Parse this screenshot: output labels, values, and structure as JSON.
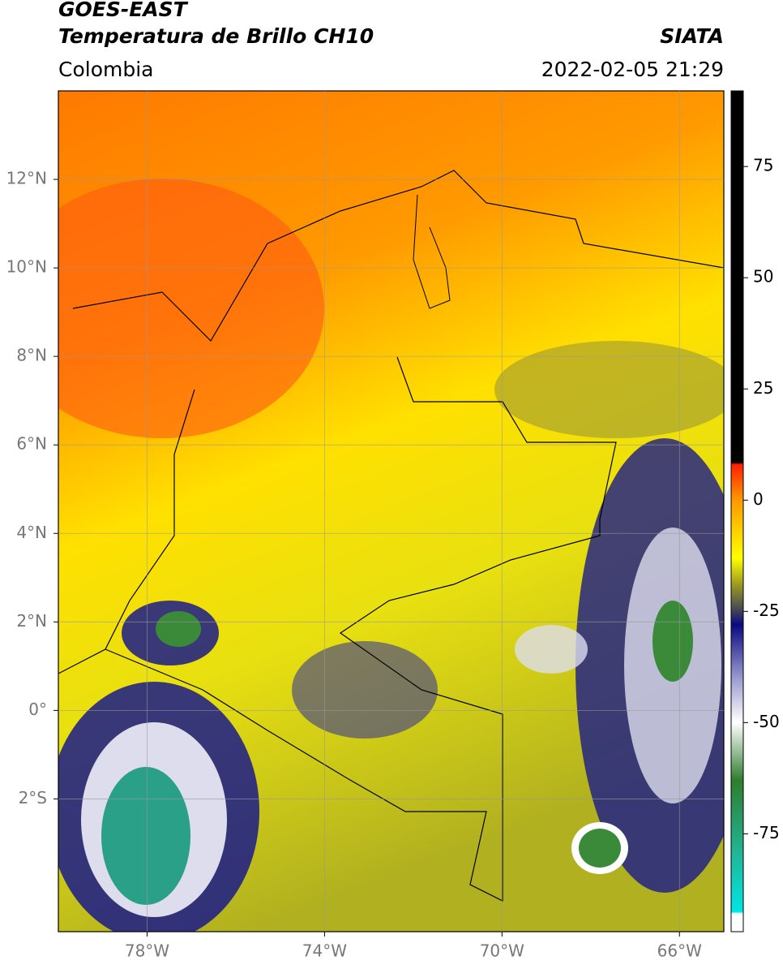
{
  "header": {
    "title": "GOES-EAST",
    "subtitle": "Temperatura de Brillo CH10",
    "source": "SIATA",
    "region": "Colombia",
    "datetime": "2022-02-05 21:29"
  },
  "map": {
    "xlim": [
      -80,
      -65
    ],
    "ylim": [
      -5,
      14
    ],
    "grid": true,
    "xticks": [
      {
        "value": -78,
        "label": "78°W"
      },
      {
        "value": -74,
        "label": "74°W"
      },
      {
        "value": -70,
        "label": "70°W"
      },
      {
        "value": -66,
        "label": "66°W"
      }
    ],
    "yticks": [
      {
        "value": 12,
        "label": "12°N"
      },
      {
        "value": 10,
        "label": "10°N"
      },
      {
        "value": 8,
        "label": "8°N"
      },
      {
        "value": 6,
        "label": "6°N"
      },
      {
        "value": 4,
        "label": "4°N"
      },
      {
        "value": 2,
        "label": "2°N"
      },
      {
        "value": 0,
        "label": "0°"
      },
      {
        "value": -2,
        "label": "2°S"
      }
    ]
  },
  "colorbar": {
    "clim": [
      -97,
      92
    ],
    "ticks": [
      75,
      50,
      25,
      0,
      -25,
      -50,
      -75
    ],
    "stops": [
      {
        "value": -97,
        "color": "#ffffff"
      },
      {
        "value": -93,
        "color": "#ffffff"
      },
      {
        "value": -92.5,
        "color": "#00e5e5"
      },
      {
        "value": -80,
        "color": "#20b89a"
      },
      {
        "value": -63,
        "color": "#2f7d2f"
      },
      {
        "value": -50,
        "color": "#ffffff"
      },
      {
        "value": -40,
        "color": "#9a9ad0"
      },
      {
        "value": -28,
        "color": "#0a0a80"
      },
      {
        "value": -24,
        "color": "#505050"
      },
      {
        "value": -19,
        "color": "#9a9a20"
      },
      {
        "value": -13,
        "color": "#ffff00"
      },
      {
        "value": 0,
        "color": "#ff9900"
      },
      {
        "value": 8,
        "color": "#ff2000"
      },
      {
        "value": 8.5,
        "color": "#000000"
      },
      {
        "value": 92,
        "color": "#000000"
      }
    ]
  }
}
